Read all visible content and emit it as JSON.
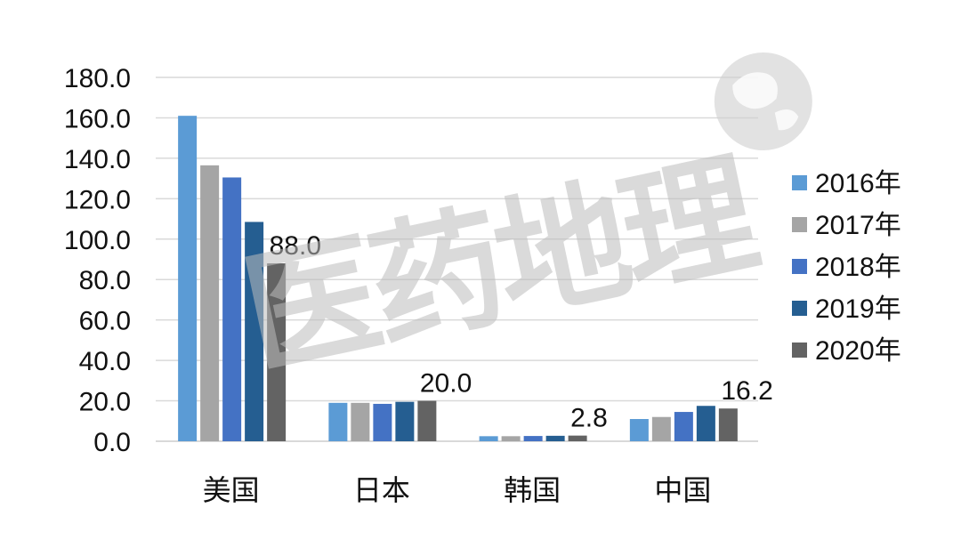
{
  "chart_data": {
    "type": "bar",
    "categories": [
      "美国",
      "日本",
      "韩国",
      "中国"
    ],
    "series": [
      {
        "name": "2016年",
        "values": [
          161.0,
          19.0,
          2.5,
          11.0
        ],
        "color": "#5b9bd5"
      },
      {
        "name": "2017年",
        "values": [
          136.5,
          19.0,
          2.5,
          12.0
        ],
        "color": "#a5a5a5"
      },
      {
        "name": "2018年",
        "values": [
          130.5,
          18.5,
          2.6,
          14.5
        ],
        "color": "#4472c4"
      },
      {
        "name": "2019年",
        "values": [
          108.5,
          19.5,
          2.7,
          17.5
        ],
        "color": "#255e91"
      },
      {
        "name": "2020年",
        "values": [
          88.0,
          20.0,
          2.8,
          16.2
        ],
        "color": "#636363"
      }
    ],
    "data_labels": [
      "88.0",
      "20.0",
      "2.8",
      "16.2"
    ],
    "y_ticks": [
      "0.0",
      "20.0",
      "40.0",
      "60.0",
      "80.0",
      "100.0",
      "120.0",
      "140.0",
      "160.0",
      "180.0"
    ],
    "ylim": [
      0,
      180
    ],
    "grid": true,
    "legend": "right"
  },
  "watermark": {
    "text": "医药地理",
    "icon": "globe-icon"
  }
}
